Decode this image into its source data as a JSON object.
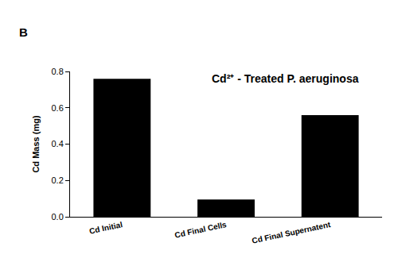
{
  "chart_data": {
    "type": "bar",
    "title": "Cd²⁺ - Treated P. aeruginosa",
    "annotations": [
      "B"
    ],
    "y_label": "Cd Mass (mg)",
    "categories": [
      "Cd Initial",
      "Cd Final Cells",
      "Cd Final Supernatent"
    ],
    "values": [
      0.76,
      0.095,
      0.56
    ],
    "color": "#000000",
    "ylim": [
      0,
      0.8
    ],
    "yticks": [
      {
        "value": 0,
        "label": "0.0"
      },
      0.2,
      0.4,
      0.6,
      0.8
    ],
    "grid": false
  }
}
